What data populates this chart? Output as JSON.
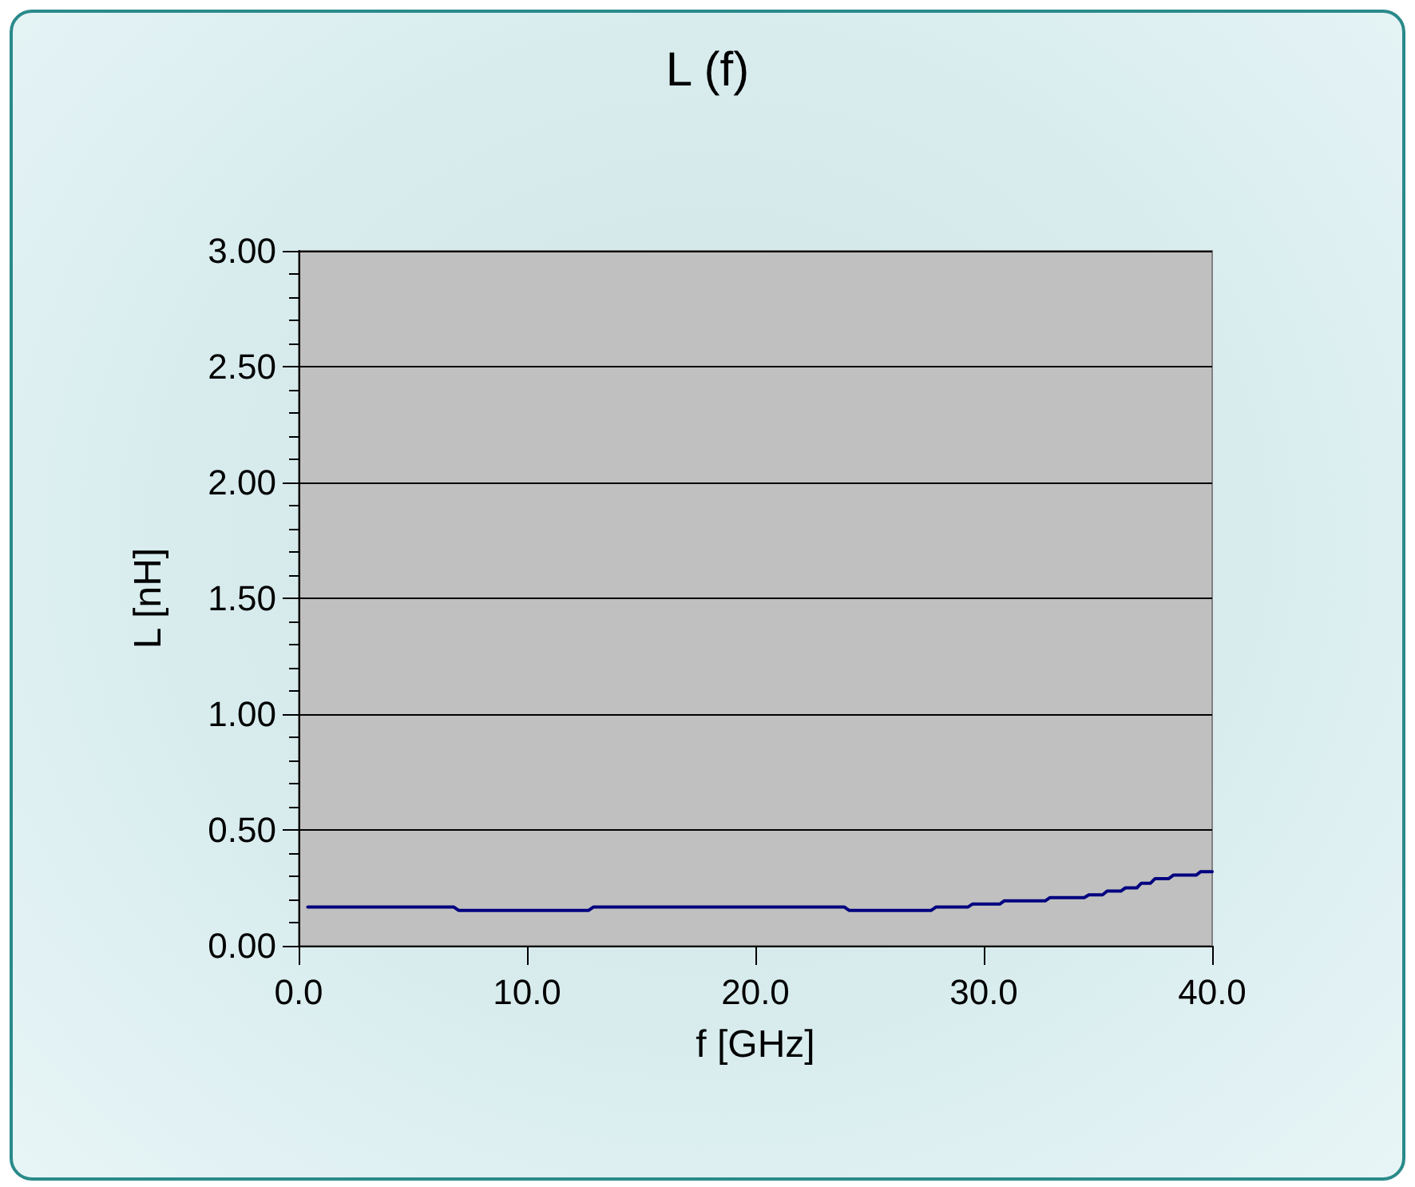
{
  "chart_data": {
    "type": "line",
    "title": "L (f)",
    "xlabel": "f [GHz]",
    "ylabel": "L [nH]",
    "series": [
      {
        "color": "#000080",
        "x": [
          0.4,
          6.8,
          7.0,
          12.7,
          12.9,
          23.9,
          24.1,
          27.7,
          27.9,
          29.3,
          29.5,
          30.7,
          30.9,
          32.7,
          32.9,
          34.4,
          34.6,
          35.2,
          35.4,
          36.0,
          36.2,
          36.7,
          36.9,
          37.3,
          37.5,
          38.1,
          38.3,
          39.3,
          39.5,
          40.0
        ],
        "values": [
          0.167,
          0.167,
          0.153,
          0.153,
          0.167,
          0.167,
          0.153,
          0.153,
          0.167,
          0.167,
          0.18,
          0.18,
          0.194,
          0.194,
          0.208,
          0.208,
          0.22,
          0.22,
          0.236,
          0.236,
          0.25,
          0.25,
          0.27,
          0.27,
          0.29,
          0.29,
          0.305,
          0.305,
          0.32,
          0.32
        ]
      }
    ],
    "xlim": [
      0,
      40
    ],
    "xticks": [
      {
        "value": 0,
        "label": "0.0"
      },
      {
        "value": 10,
        "label": "10.0"
      },
      {
        "value": 20,
        "label": "20.0"
      },
      {
        "value": 30,
        "label": "30.0"
      },
      {
        "value": 40,
        "label": "40.0"
      }
    ],
    "ylim": [
      0,
      3
    ],
    "yticks": [
      {
        "value": 0,
        "label": "0.00"
      },
      {
        "value": 0.5,
        "label": "0.50"
      },
      {
        "value": 1,
        "label": "1.00"
      },
      {
        "value": 1.5,
        "label": "1.50"
      },
      {
        "value": 2,
        "label": "2.00"
      },
      {
        "value": 2.5,
        "label": "2.50"
      },
      {
        "value": 3,
        "label": "3.00"
      }
    ],
    "grid": "y",
    "marker": "none",
    "line_style": "solid"
  }
}
